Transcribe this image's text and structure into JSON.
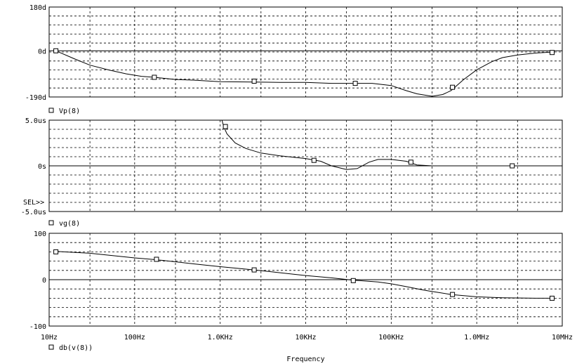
{
  "chart_data": {
    "type": "line",
    "x_axis": {
      "scale": "log",
      "range_hz": [
        10,
        10000000
      ],
      "tick_values_hz": [
        10,
        100,
        1000,
        10000,
        100000,
        1000000,
        10000000
      ],
      "tick_labels": [
        "10Hz",
        "100Hz",
        "1.0KHz",
        "10KHz",
        "100KHz",
        "1.0MHz",
        "10MHz"
      ],
      "label": "Frequency"
    },
    "grid": true,
    "panels": [
      {
        "id": "phase",
        "legend": "Vp(8)",
        "ylim": [
          -190,
          180
        ],
        "y_tick_values": [
          180,
          0,
          -190
        ],
        "y_tick_labels": [
          "180d",
          "0d",
          "-190d"
        ],
        "x": [
          12,
          20,
          30,
          50,
          80,
          120,
          170,
          300,
          500,
          1000,
          2000,
          5000,
          10000,
          20000,
          35000,
          60000,
          100000,
          150000,
          200000,
          300000,
          400000,
          500000,
          700000,
          1000000,
          1500000,
          2000000,
          3000000,
          5000000,
          8000000
        ],
        "y": [
          0,
          -34,
          -59,
          -79,
          -95,
          -105,
          -109,
          -118,
          -121,
          -127,
          -128,
          -130,
          -130,
          -134,
          -134,
          -134,
          -143,
          -164,
          -177,
          -187,
          -180,
          -164,
          -119,
          -78,
          -45,
          -28,
          -17,
          -9,
          -5
        ],
        "markers_x": [
          12,
          170,
          2500,
          38000,
          520000,
          7600000
        ],
        "markers_y": [
          0,
          -109,
          -125,
          -134,
          -150,
          -7
        ]
      },
      {
        "id": "group-delay",
        "legend": "vg(8)",
        "sel_label": "SEL>>",
        "ylim": [
          -5.0,
          5.0
        ],
        "y_tick_values": [
          5.0,
          0,
          -5.0
        ],
        "y_tick_labels": [
          "5.0us",
          "0s",
          "-5.0us"
        ],
        "x": [
          1050,
          1100,
          1200,
          1500,
          2000,
          3000,
          5000,
          10000,
          15000,
          20000,
          30000,
          40000,
          55000,
          70000,
          100000,
          150000,
          200000,
          300000,
          500000,
          1000000,
          2000000,
          2600000
        ],
        "y": [
          5.0,
          4.3,
          3.5,
          2.5,
          1.9,
          1.4,
          1.1,
          0.8,
          0.5,
          0.0,
          -0.4,
          -0.3,
          0.4,
          0.7,
          0.7,
          0.5,
          0.1,
          0.0,
          0.0,
          0.0,
          0.0,
          0.0
        ],
        "markers_x": [
          1150,
          12500,
          170000,
          2600000
        ],
        "markers_y": [
          4.3,
          0.6,
          0.4,
          0.0
        ]
      },
      {
        "id": "magnitude",
        "legend": "db(v(8))",
        "ylim": [
          -100,
          100
        ],
        "y_tick_values": [
          100,
          0,
          -100
        ],
        "y_tick_labels": [
          "100",
          "0",
          "-100"
        ],
        "x": [
          12,
          30,
          100,
          180,
          500,
          1000,
          2500,
          5000,
          10000,
          20000,
          36000,
          70000,
          100000,
          150000,
          250000,
          500000,
          1000000,
          2000000,
          5000000,
          8000000
        ],
        "y": [
          61,
          57,
          47,
          43,
          34,
          28,
          21,
          15,
          9,
          4,
          -1,
          -5,
          -9,
          -15,
          -23,
          -32,
          -37,
          -39,
          -40,
          -40
        ],
        "markers_x": [
          12,
          180,
          2500,
          36000,
          520000,
          7600000
        ],
        "markers_y": [
          60,
          44,
          21,
          -2,
          -32,
          -40
        ]
      }
    ]
  }
}
